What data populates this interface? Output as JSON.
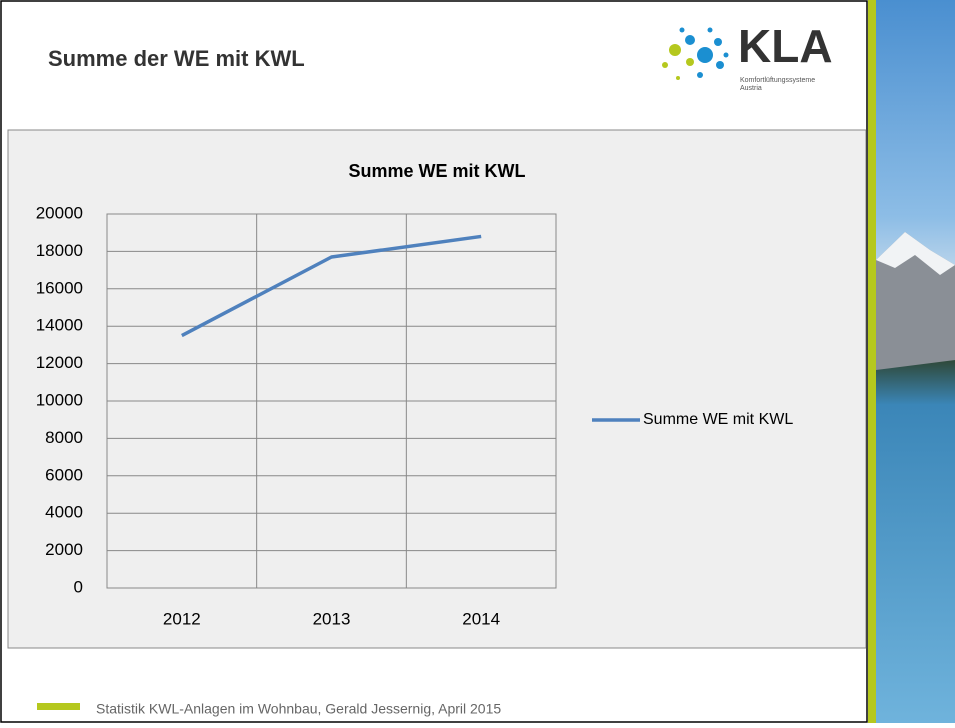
{
  "header": {
    "title": "Summe der WE mit KWL",
    "logo": "KLA",
    "logo_line1": "Komfortlüftungssysteme",
    "logo_line2": "Austria"
  },
  "footer": {
    "text": "Statistik KWL-Anlagen im Wohnbau, Gerald Jessernig, April 2015"
  },
  "chart_data": {
    "type": "line",
    "title": "Summe WE mit KWL",
    "categories": [
      "2012",
      "2013",
      "2014"
    ],
    "series": [
      {
        "name": "Summe WE mit KWL",
        "color": "#4f81bd",
        "values": [
          13500,
          17700,
          18800
        ]
      }
    ],
    "ylim": [
      0,
      20000
    ],
    "yticks": [
      0,
      2000,
      4000,
      6000,
      8000,
      10000,
      12000,
      14000,
      16000,
      18000,
      20000
    ],
    "grid": true,
    "legend": "right"
  }
}
